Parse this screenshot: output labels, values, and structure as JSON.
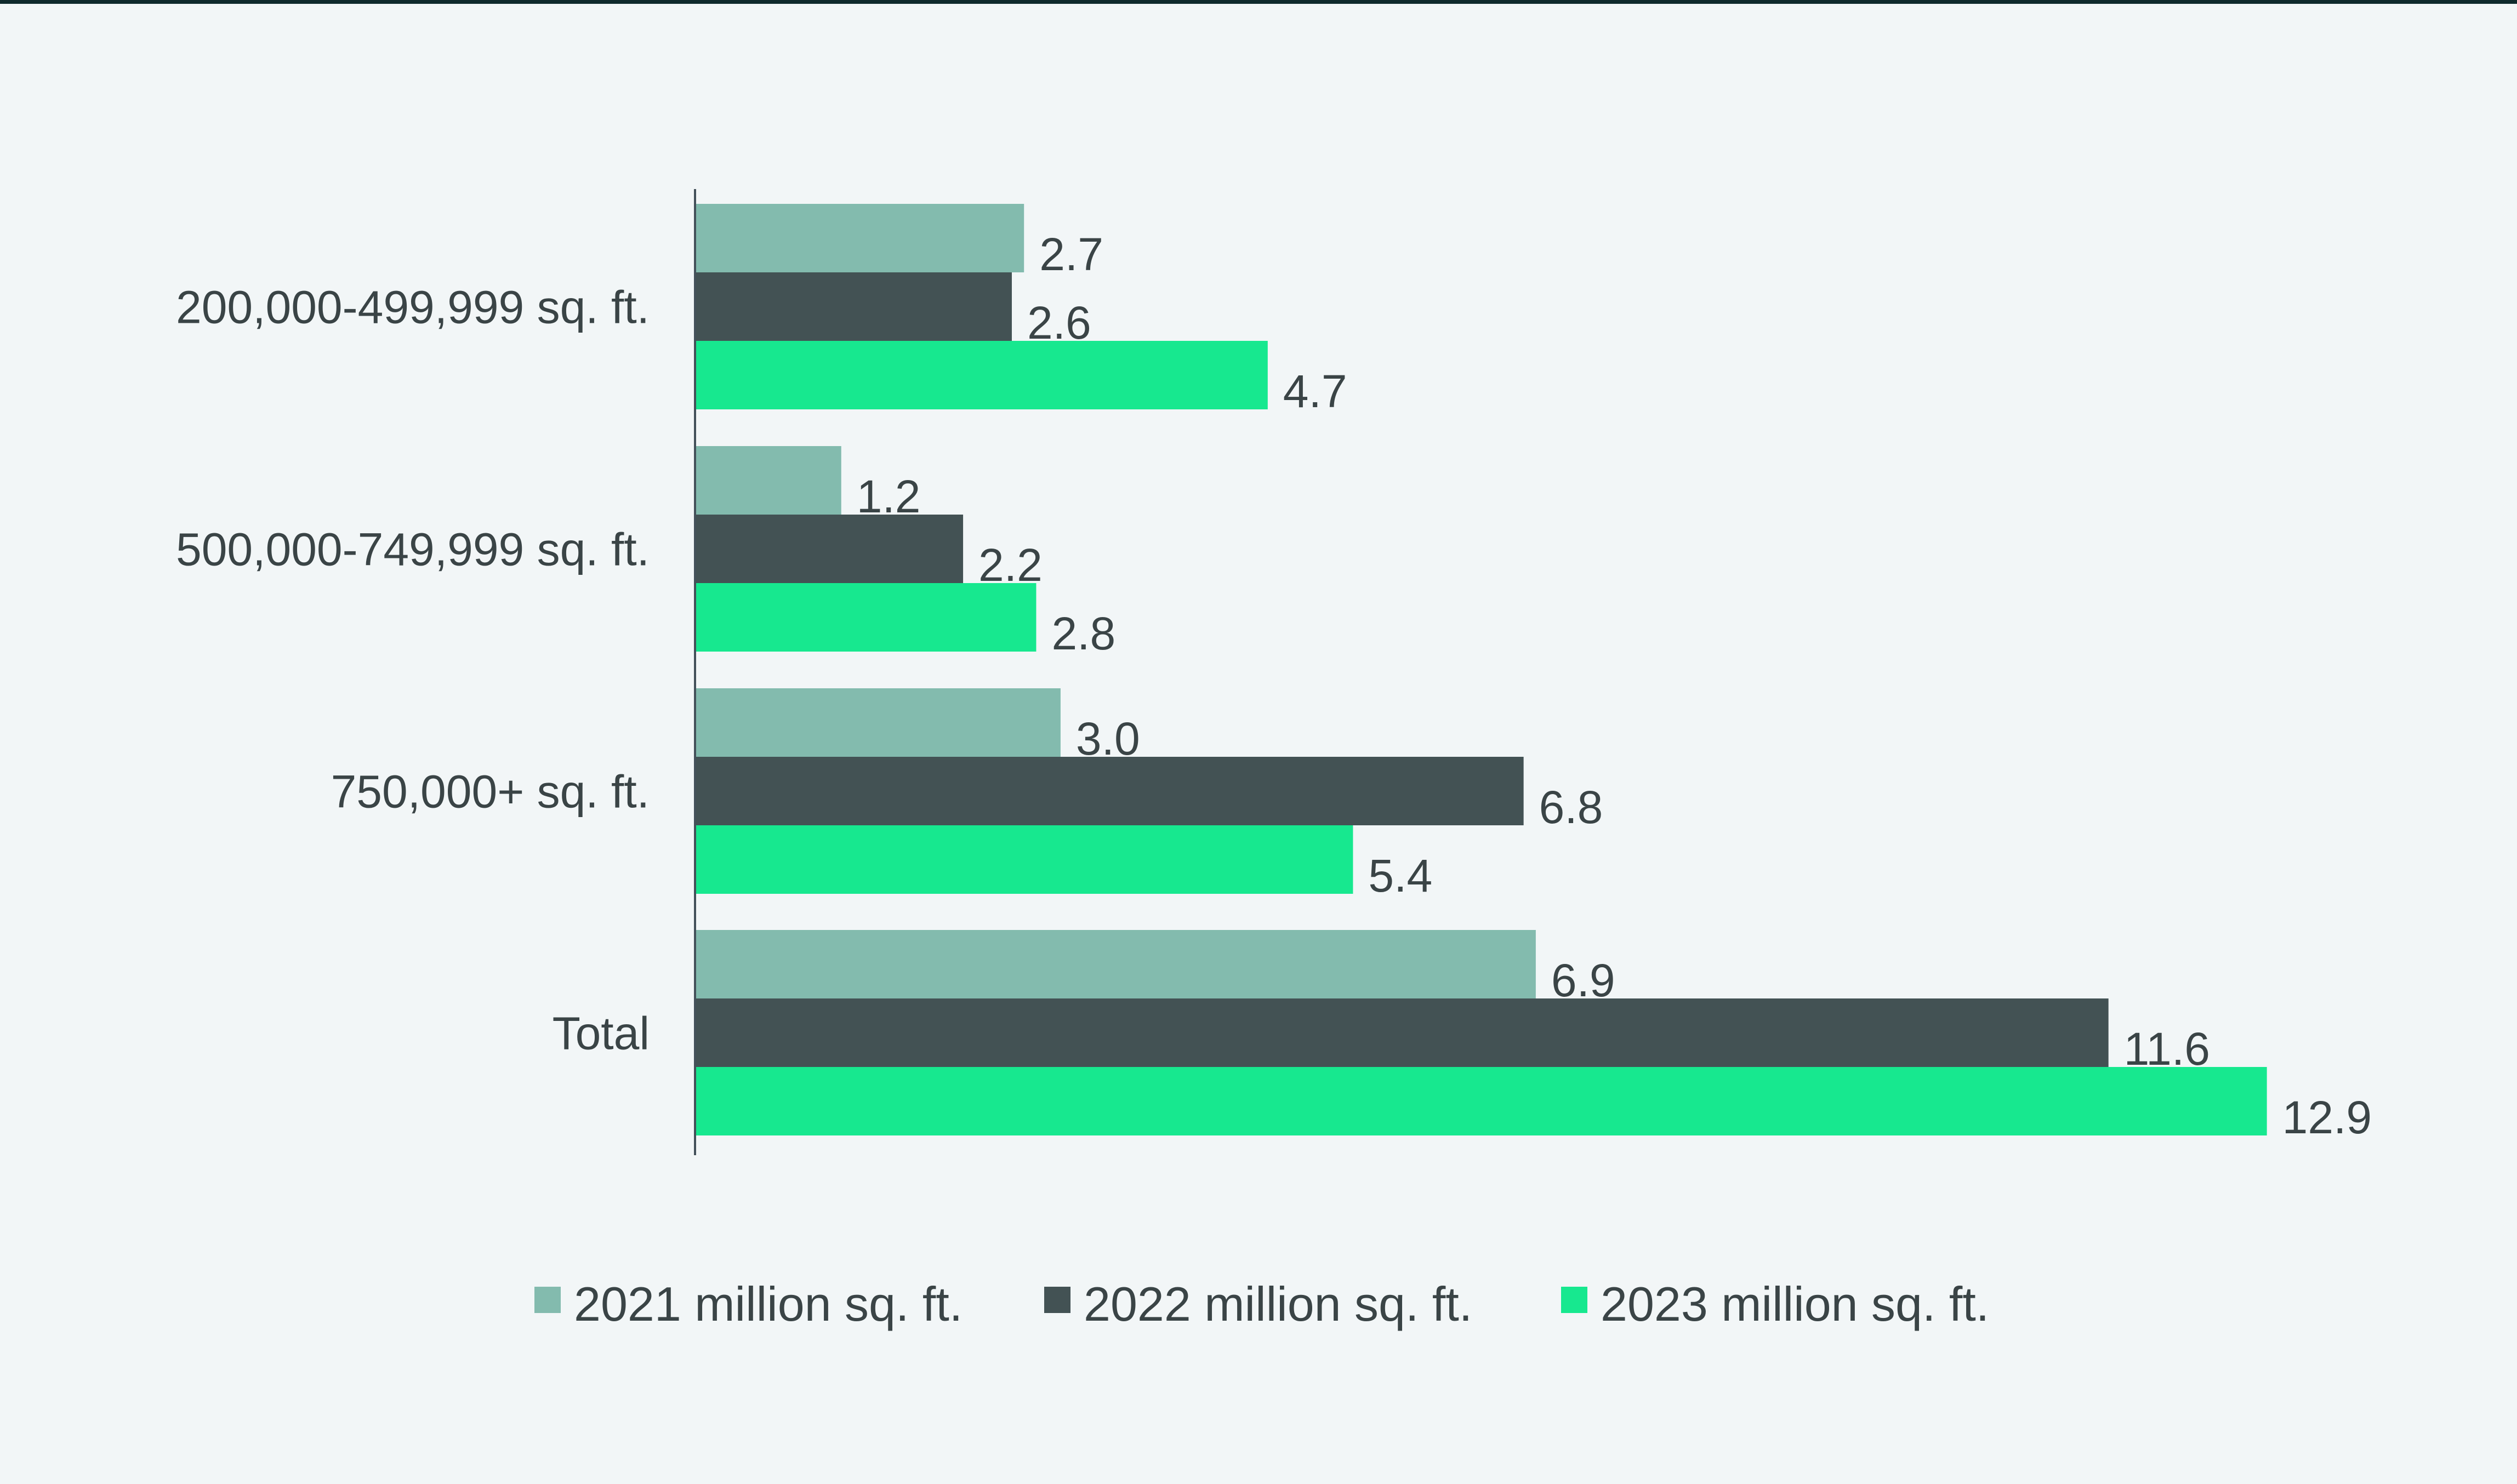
{
  "chart_data": {
    "type": "bar",
    "orientation": "horizontal",
    "title": "",
    "xlabel": "",
    "ylabel": "",
    "xlim": [
      0,
      13.5
    ],
    "grid": false,
    "legend_position": "bottom",
    "categories": [
      "200,000-499,999 sq. ft.",
      "500,000-749,999 sq. ft.",
      "750,000+ sq. ft.",
      "Total"
    ],
    "series": [
      {
        "name": "2021 million sq. ft.",
        "color": "#83bbae",
        "values": [
          2.7,
          1.2,
          3.0,
          6.9
        ],
        "labels": [
          "2.7",
          "1.2",
          "3.0",
          "6.9"
        ]
      },
      {
        "name": "2022 million sq. ft.",
        "color": "#435254",
        "values": [
          2.6,
          2.2,
          6.8,
          11.6
        ],
        "labels": [
          "2.6",
          "2.2",
          "6.8",
          "11.6"
        ]
      },
      {
        "name": "2023 million sq. ft.",
        "color": "#17e88f",
        "values": [
          4.7,
          2.8,
          5.4,
          12.9
        ],
        "labels": [
          "4.7",
          "2.8",
          "5.4",
          "12.9"
        ]
      }
    ]
  },
  "colors": {
    "background": "#f2f6f7",
    "axis": "#44515a",
    "text": "#3a4446"
  }
}
